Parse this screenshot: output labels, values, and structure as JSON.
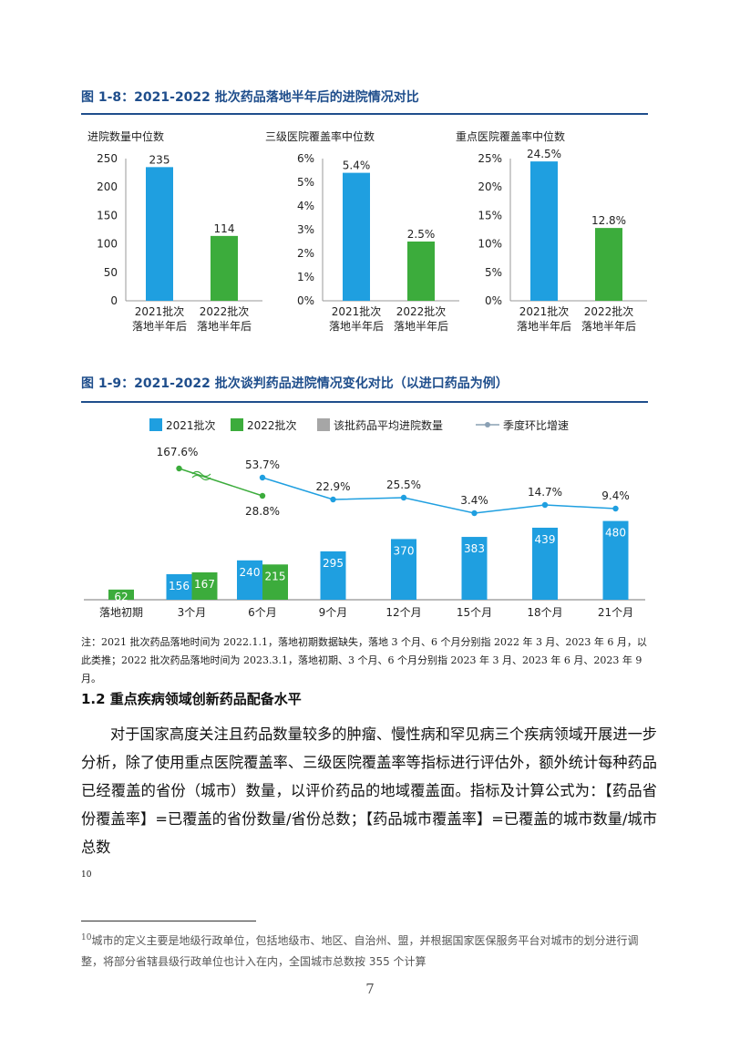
{
  "figure_1_8": {
    "title": "图 1-8：2021-2022 批次药品落地半年后的进院情况对比",
    "charts": [
      {
        "title": "进院数量中位数",
        "ticks": [
          "250",
          "200",
          "150",
          "100",
          "50",
          "0"
        ]
      },
      {
        "title": "三级医院覆盖率中位数",
        "ticks": [
          "6%",
          "5%",
          "4%",
          "3%",
          "2%",
          "1%",
          "0%"
        ]
      },
      {
        "title": "重点医院覆盖率中位数",
        "ticks": [
          "25%",
          "20%",
          "15%",
          "10%",
          "5%",
          "0%"
        ]
      }
    ],
    "cat1": [
      "2021批次",
      "落地半年后"
    ],
    "cat2": [
      "2022批次",
      "落地半年后"
    ]
  },
  "figure_1_9": {
    "title": "图 1-9：2021-2022 批次谈判药品进院情况变化对比（以进口药品为例）",
    "legend": [
      "2021批次",
      "2022批次",
      "该批药品平均进院数量",
      "季度环比增速"
    ]
  },
  "chart_data": [
    {
      "type": "bar",
      "title": "进院数量中位数",
      "categories": [
        "2021批次落地半年后",
        "2022批次落地半年后"
      ],
      "values": [
        235,
        114
      ],
      "labels": [
        "235",
        "114"
      ],
      "ylim": [
        0,
        250
      ],
      "colors": [
        "#1f9fe0",
        "#3cac3c"
      ]
    },
    {
      "type": "bar",
      "title": "三级医院覆盖率中位数",
      "categories": [
        "2021批次落地半年后",
        "2022批次落地半年后"
      ],
      "values": [
        5.4,
        2.5
      ],
      "labels": [
        "5.4%",
        "2.5%"
      ],
      "ylim": [
        0,
        6
      ],
      "colors": [
        "#1f9fe0",
        "#3cac3c"
      ]
    },
    {
      "type": "bar",
      "title": "重点医院覆盖率中位数",
      "categories": [
        "2021批次落地半年后",
        "2022批次落地半年后"
      ],
      "values": [
        24.5,
        12.8
      ],
      "labels": [
        "24.5%",
        "12.8%"
      ],
      "ylim": [
        0,
        25
      ],
      "colors": [
        "#1f9fe0",
        "#3cac3c"
      ]
    },
    {
      "type": "bar",
      "categories": [
        "落地初期",
        "3个月",
        "6个月",
        "9个月",
        "12个月",
        "15个月",
        "18个月",
        "21个月"
      ],
      "series": [
        {
          "name": "2021批次",
          "color": "#1f9fe0",
          "values": [
            null,
            156,
            240,
            295,
            370,
            383,
            439,
            480
          ]
        },
        {
          "name": "2022批次",
          "color": "#3cac3c",
          "values": [
            62,
            167,
            215,
            null,
            null,
            null,
            null,
            null
          ]
        }
      ],
      "growth_lines": [
        {
          "name": "2021批次",
          "color": "#1f9fe0",
          "points": [
            [
              2,
              53.7
            ],
            [
              3,
              22.9
            ],
            [
              4,
              25.5
            ],
            [
              5,
              3.4
            ],
            [
              6,
              14.7
            ],
            [
              7,
              9.4
            ]
          ],
          "labels": [
            "53.7%",
            "22.9%",
            "25.5%",
            "3.4%",
            "14.7%",
            "9.4%"
          ]
        },
        {
          "name": "2022批次",
          "color": "#3cac3c",
          "points": [
            [
              1,
              167.6
            ],
            [
              2,
              28.8
            ]
          ],
          "labels": [
            "167.6%",
            "28.8%"
          ]
        }
      ],
      "legend_position": "top"
    }
  ],
  "note": "注：2021 批次药品落地时间为 2022.1.1，落地初期数据缺失，落地 3 个月、6 个月分别指 2022 年 3 月、2023 年 6 月，以此类推；2022 批次药品落地时间为 2023.3.1，落地初期、3 个月、6 个月分别指 2023 年 3 月、2023 年 6 月、2023 年 9 月。",
  "section": {
    "heading": "1.2 重点疾病领域创新药品配备水平",
    "paragraph": "对于国家高度关注且药品数量较多的肿瘤、慢性病和罕见病三个疾病领域开展进一步分析，除了使用重点医院覆盖率、三级医院覆盖率等指标进行评估外，额外统计每种药品已经覆盖的省份（城市）数量，以评价药品的地域覆盖面。指标及计算公式为：【药品省份覆盖率】=已覆盖的省份数量/省份总数；【药品城市覆盖率】=已覆盖的城市数量/城市总数",
    "footnote_ref": "10"
  },
  "footnote": {
    "mark": "10",
    "text": "城市的定义主要是地级行政单位，包括地级市、地区、自治州、盟，并根据国家医保服务平台对城市的划分进行调整，将部分省辖县级行政单位也计入在内，全国城市总数按 355 个计算"
  },
  "page_number": "7"
}
